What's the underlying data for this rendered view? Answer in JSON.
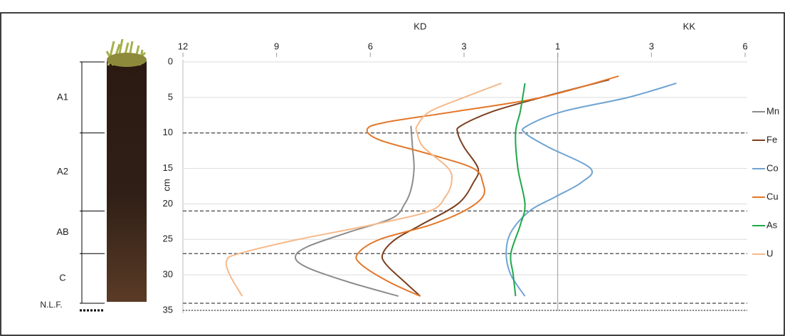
{
  "chart_data": {
    "type": "line",
    "x_axis_labels": [
      "KD",
      "KK"
    ],
    "y_label": "cm",
    "ylim": [
      0,
      35
    ],
    "yticks": [
      0,
      5,
      10,
      15,
      20,
      25,
      30,
      35
    ],
    "xticks_kd": [
      12,
      9,
      6,
      3,
      1
    ],
    "xticks_kk": [
      1,
      3,
      6
    ],
    "grid": true,
    "legend": "right",
    "horizons": [
      {
        "label": "A1",
        "top": 0,
        "bottom": 10
      },
      {
        "label": "A2",
        "top": 10,
        "bottom": 21
      },
      {
        "label": "AB",
        "top": 21,
        "bottom": 27
      },
      {
        "label": "C",
        "top": 27,
        "bottom": 34
      },
      {
        "label": "N.L.F.",
        "top": 34,
        "bottom": 35
      }
    ],
    "series": [
      {
        "name": "Mn",
        "color": "#8c8c8c",
        "x": [
          4.7,
          4.65,
          4.6,
          4.7,
          4.9,
          5.3,
          6.7,
          8.0,
          8.4,
          8.0,
          6.7,
          5.1
        ],
        "x_axis": [
          "KD",
          "KD",
          "KD",
          "KD",
          "KD",
          "KD",
          "KD",
          "KD",
          "KD",
          "KD",
          "KD",
          "KD"
        ],
        "values": [
          9,
          12,
          15,
          18,
          20,
          22,
          24,
          26,
          27.5,
          29,
          31,
          33
        ]
      },
      {
        "name": "Fe",
        "color": "#7b3f1e",
        "x": [
          2.1,
          1.35,
          2.4,
          3.1,
          3.2,
          3.0,
          2.7,
          2.8,
          3.2,
          4.4,
          5.2,
          5.6,
          5.5,
          4.9,
          4.4
        ],
        "x_axis": [
          "KK",
          "KD",
          "KD",
          "KD",
          "KD",
          "KD",
          "KD",
          "KD",
          "KD",
          "KD",
          "KD",
          "KD",
          "KD",
          "KD",
          "KD"
        ],
        "values": [
          2.5,
          5,
          7,
          9,
          10,
          12,
          15,
          17,
          20,
          23,
          25,
          27,
          28.5,
          31,
          33
        ]
      },
      {
        "name": "Co",
        "color": "#6fa3d2",
        "x": [
          3.8,
          2.5,
          1.1,
          1.65,
          1.7,
          1.2,
          1.7,
          1.5,
          1.05,
          1.6,
          2.0,
          2.1,
          2.0,
          1.7
        ],
        "x_axis": [
          "KK",
          "KK",
          "KK",
          "KD",
          "KD",
          "KD",
          "KK",
          "KK",
          "KD",
          "KD",
          "KD",
          "KD",
          "KD",
          "KD"
        ],
        "values": [
          3,
          5,
          7,
          9,
          10,
          12,
          15,
          17,
          19,
          21,
          24,
          27,
          30,
          33
        ]
      },
      {
        "name": "Cu",
        "color": "#e3772a",
        "x": [
          2.3,
          1.35,
          3.3,
          5.5,
          6.1,
          5.7,
          4.1,
          2.8,
          2.6,
          2.6,
          3.0,
          4.1,
          5.7,
          6.4,
          6.3,
          5.4,
          4.4
        ],
        "x_axis": [
          "KK",
          "KD",
          "KD",
          "KD",
          "KD",
          "KD",
          "KD",
          "KD",
          "KD",
          "KD",
          "KD",
          "KD",
          "KD",
          "KD",
          "KD",
          "KD",
          "KD"
        ],
        "values": [
          2,
          5,
          7,
          8.5,
          9.5,
          11,
          13,
          15,
          17,
          19,
          21,
          23,
          25,
          27,
          28.5,
          31,
          33
        ]
      },
      {
        "name": "As",
        "color": "#1fa84a",
        "x": [
          1.7,
          1.8,
          1.9,
          1.85,
          1.7,
          1.8,
          2.0,
          1.95,
          1.9
        ],
        "x_axis": [
          "KD",
          "KD",
          "KD",
          "KD",
          "KD",
          "KD",
          "KD",
          "KD",
          "KD"
        ],
        "values": [
          3,
          7,
          10,
          15,
          20,
          23,
          27,
          30,
          33
        ]
      },
      {
        "name": "U",
        "color": "#f6b98a",
        "x": [
          2.2,
          3.0,
          4.1,
          4.5,
          4.5,
          4.3,
          3.5,
          3.4,
          3.6,
          4.1,
          6.0,
          8.3,
          10.2,
          10.6,
          10.5,
          10.1
        ],
        "x_axis": [
          "KD",
          "KD",
          "KD",
          "KD",
          "KD",
          "KD",
          "KD",
          "KD",
          "KD",
          "KD",
          "KD",
          "KD",
          "KD",
          "KD",
          "KD",
          "KD"
        ],
        "values": [
          3,
          5,
          7,
          9,
          10,
          12,
          15,
          17,
          19,
          21,
          23,
          25,
          27,
          28,
          30,
          33
        ]
      }
    ]
  }
}
